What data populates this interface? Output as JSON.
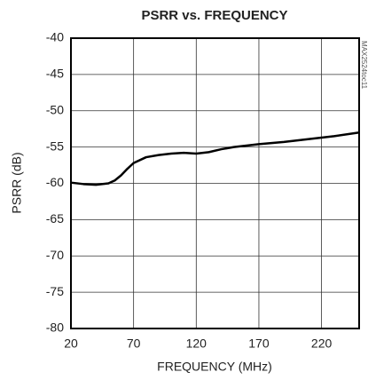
{
  "chart_data": {
    "type": "line",
    "title": "PSRR vs. FREQUENCY",
    "xlabel": "FREQUENCY (MHz)",
    "ylabel": "PSRR (dB)",
    "annotation": "MAX2524toc11",
    "x": [
      20,
      30,
      40,
      50,
      55,
      60,
      65,
      70,
      80,
      90,
      100,
      110,
      120,
      130,
      140,
      150,
      170,
      190,
      210,
      230,
      250
    ],
    "series": [
      {
        "name": "PSRR",
        "color": "#000000",
        "values": [
          -59.9,
          -60.1,
          -60.2,
          -60.0,
          -59.6,
          -58.9,
          -58.0,
          -57.2,
          -56.4,
          -56.1,
          -55.9,
          -55.8,
          -55.9,
          -55.7,
          -55.3,
          -55.0,
          -54.6,
          -54.3,
          -53.9,
          -53.5,
          -53.0
        ]
      }
    ],
    "xlim": [
      20,
      250
    ],
    "xticks": [
      20,
      70,
      120,
      170,
      220
    ],
    "ylim": [
      -80,
      -40
    ],
    "yticks": [
      -80,
      -75,
      -70,
      -65,
      -60,
      -55,
      -50,
      -45,
      -40
    ],
    "grid": true
  }
}
